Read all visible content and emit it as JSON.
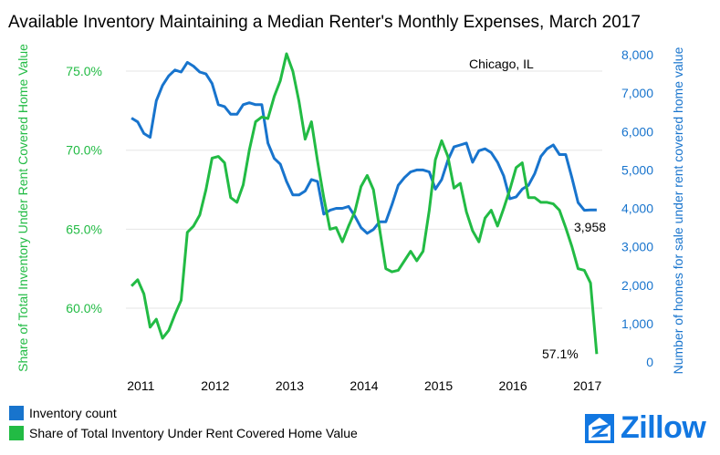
{
  "title": "Available Inventory Maintaining a Median Renter's Monthly Expenses, March 2017",
  "legend": {
    "inventory": "Inventory count",
    "share": "Share of Total Inventory Under Rent Covered Home Value"
  },
  "logo": {
    "text": "Zillow",
    "icon": "zillow-house-icon"
  },
  "colors": {
    "inventory": "#1874cd",
    "share": "#22bb44",
    "brand": "#1277e1"
  },
  "chart_data": {
    "type": "line",
    "location_label": "Chicago, IL",
    "x_ticks": [
      "2011",
      "2012",
      "2013",
      "2014",
      "2015",
      "2016",
      "2017"
    ],
    "x_tick_values": [
      2011,
      2012,
      2013,
      2014,
      2015,
      2016,
      2017
    ],
    "xlim": [
      2010.8,
      2017.2
    ],
    "left_axis": {
      "label": "Share of Total Inventory Under Rent Covered Home Value",
      "ticks": [
        "60.0%",
        "65.0%",
        "70.0%",
        "75.0%"
      ],
      "tick_values": [
        60,
        65,
        70,
        75
      ],
      "ylim": [
        57.1,
        76.3
      ]
    },
    "right_axis": {
      "label": "Number of homes for sale under rent covered home value",
      "ticks": [
        "0",
        "1,000",
        "2,000",
        "3,000",
        "4,000",
        "5,000",
        "6,000",
        "7,000",
        "8,000"
      ],
      "tick_values": [
        0,
        1000,
        2000,
        3000,
        4000,
        5000,
        6000,
        7000,
        8000
      ],
      "ylim": [
        0,
        8000
      ]
    },
    "series": [
      {
        "name": "Inventory count",
        "axis": "right",
        "x": [
          2010.875,
          2010.958,
          2011.042,
          2011.125,
          2011.208,
          2011.292,
          2011.375,
          2011.458,
          2011.542,
          2011.625,
          2011.708,
          2011.792,
          2011.875,
          2011.958,
          2012.042,
          2012.125,
          2012.208,
          2012.292,
          2012.375,
          2012.458,
          2012.542,
          2012.625,
          2012.708,
          2012.792,
          2012.875,
          2012.958,
          2013.042,
          2013.125,
          2013.208,
          2013.292,
          2013.375,
          2013.458,
          2013.542,
          2013.625,
          2013.708,
          2013.792,
          2013.875,
          2013.958,
          2014.042,
          2014.125,
          2014.208,
          2014.292,
          2014.375,
          2014.458,
          2014.542,
          2014.625,
          2014.708,
          2014.792,
          2014.875,
          2014.958,
          2015.042,
          2015.125,
          2015.208,
          2015.292,
          2015.375,
          2015.458,
          2015.542,
          2015.625,
          2015.708,
          2015.792,
          2015.875,
          2015.958,
          2016.042,
          2016.125,
          2016.208,
          2016.292,
          2016.375,
          2016.458,
          2016.542,
          2016.625,
          2016.708,
          2016.792,
          2016.875,
          2016.958,
          2017.042,
          2017.125
        ],
        "values": [
          6350,
          6250,
          5950,
          5850,
          6800,
          7200,
          7450,
          7600,
          7550,
          7800,
          7700,
          7550,
          7500,
          7250,
          6700,
          6650,
          6450,
          6450,
          6700,
          6750,
          6700,
          6700,
          5700,
          5300,
          5150,
          4700,
          4350,
          4350,
          4450,
          4750,
          4700,
          3850,
          3950,
          4000,
          4000,
          4050,
          3800,
          3500,
          3350,
          3450,
          3650,
          3650,
          4100,
          4600,
          4800,
          4950,
          5000,
          5000,
          4950,
          4500,
          4750,
          5250,
          5600,
          5650,
          5700,
          5200,
          5500,
          5550,
          5450,
          5200,
          4850,
          4250,
          4300,
          4500,
          4600,
          4900,
          5350,
          5550,
          5650,
          5400,
          5400,
          4800,
          4150,
          3950,
          3958,
          3958
        ]
      },
      {
        "name": "Share of Total Inventory Under Rent Covered Home Value",
        "axis": "left",
        "x": [
          2010.875,
          2010.958,
          2011.042,
          2011.125,
          2011.208,
          2011.292,
          2011.375,
          2011.458,
          2011.542,
          2011.625,
          2011.708,
          2011.792,
          2011.875,
          2011.958,
          2012.042,
          2012.125,
          2012.208,
          2012.292,
          2012.375,
          2012.458,
          2012.542,
          2012.625,
          2012.708,
          2012.792,
          2012.875,
          2012.958,
          2013.042,
          2013.125,
          2013.208,
          2013.292,
          2013.375,
          2013.458,
          2013.542,
          2013.625,
          2013.708,
          2013.792,
          2013.875,
          2013.958,
          2014.042,
          2014.125,
          2014.208,
          2014.292,
          2014.375,
          2014.458,
          2014.542,
          2014.625,
          2014.708,
          2014.792,
          2014.875,
          2014.958,
          2015.042,
          2015.125,
          2015.208,
          2015.292,
          2015.375,
          2015.458,
          2015.542,
          2015.625,
          2015.708,
          2015.792,
          2015.875,
          2015.958,
          2016.042,
          2016.125,
          2016.208,
          2016.292,
          2016.375,
          2016.458,
          2016.542,
          2016.625,
          2016.708,
          2016.792,
          2016.875,
          2016.958,
          2017.042,
          2017.125
        ],
        "values": [
          61.4,
          61.8,
          60.9,
          58.8,
          59.3,
          58.1,
          58.6,
          59.6,
          60.5,
          64.8,
          65.2,
          65.9,
          67.5,
          69.5,
          69.6,
          69.2,
          67.0,
          66.7,
          67.8,
          70.0,
          71.8,
          72.1,
          72.0,
          73.4,
          74.4,
          76.1,
          75.0,
          73.1,
          70.7,
          71.8,
          69.3,
          67.0,
          65.0,
          65.1,
          64.2,
          65.2,
          66.1,
          67.7,
          68.4,
          67.5,
          65.0,
          62.5,
          62.3,
          62.4,
          63.0,
          63.6,
          63.0,
          63.6,
          66.2,
          69.4,
          70.6,
          69.6,
          67.6,
          67.9,
          66.1,
          64.9,
          64.2,
          65.7,
          66.2,
          65.2,
          66.3,
          67.5,
          68.9,
          69.2,
          67.0,
          67.0,
          66.7,
          66.7,
          66.6,
          66.2,
          65.1,
          63.9,
          62.5,
          62.4,
          61.6,
          57.1
        ]
      }
    ],
    "annotations": [
      {
        "text": "3,958",
        "series": "Inventory count",
        "x": 2017.125,
        "value": 3958
      },
      {
        "text": "57.1%",
        "series": "Share of Total Inventory Under Rent Covered Home Value",
        "x": 2017.125,
        "value": 57.1
      }
    ],
    "grid": true
  }
}
